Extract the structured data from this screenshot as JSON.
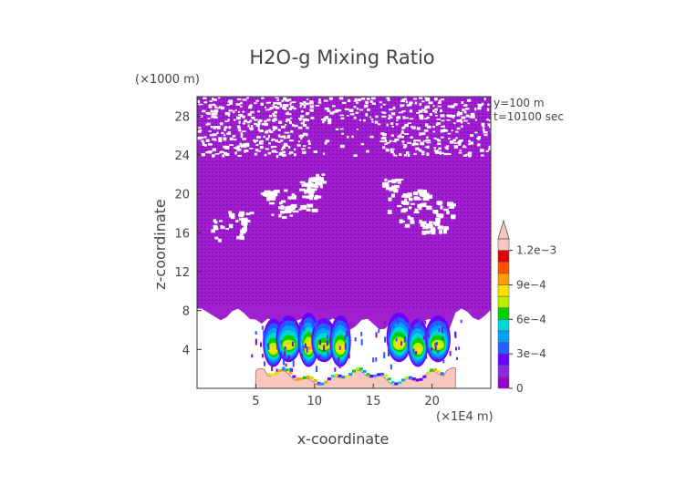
{
  "chart_data": {
    "type": "heatmap",
    "title": "H2O-g Mixing Ratio",
    "xlabel": "x-coordinate",
    "ylabel": "z-coordinate",
    "x_unit": "(×1E4 m)",
    "y_unit": "(×1000 m)",
    "annotations": [
      "y=100  m",
      "t=10100 sec"
    ],
    "xlim": [
      0,
      25
    ],
    "ylim": [
      0,
      30
    ],
    "x_ticks": [
      5,
      10,
      15,
      20
    ],
    "y_ticks": [
      4,
      8,
      12,
      16,
      20,
      24,
      28
    ],
    "colorbar": {
      "min": 0,
      "max": 0.0012,
      "labels": [
        "1.2e−3",
        "9e−4",
        "6e−4",
        "3e−4",
        "0"
      ],
      "label_values": [
        0.0012,
        0.0009,
        0.0006,
        0.0003,
        0
      ],
      "colors": [
        "#9900cc",
        "#8a2be2",
        "#6a00ff",
        "#2060ff",
        "#00a0ff",
        "#00d8d8",
        "#00d000",
        "#b8f000",
        "#ffe000",
        "#ffa000",
        "#ff5000",
        "#e00000",
        "#f8c8c0"
      ],
      "extend": "max"
    },
    "regions": [
      {
        "name": "moist-layer",
        "z_range": [
          8,
          30
        ],
        "value": 2e-05
      },
      {
        "name": "convective-cells",
        "x_range": [
          5,
          22
        ],
        "z_range": [
          1,
          8
        ],
        "value": 0.0006
      },
      {
        "name": "terrain",
        "x_range": [
          5,
          22
        ],
        "z_range": [
          0,
          2
        ]
      }
    ]
  }
}
